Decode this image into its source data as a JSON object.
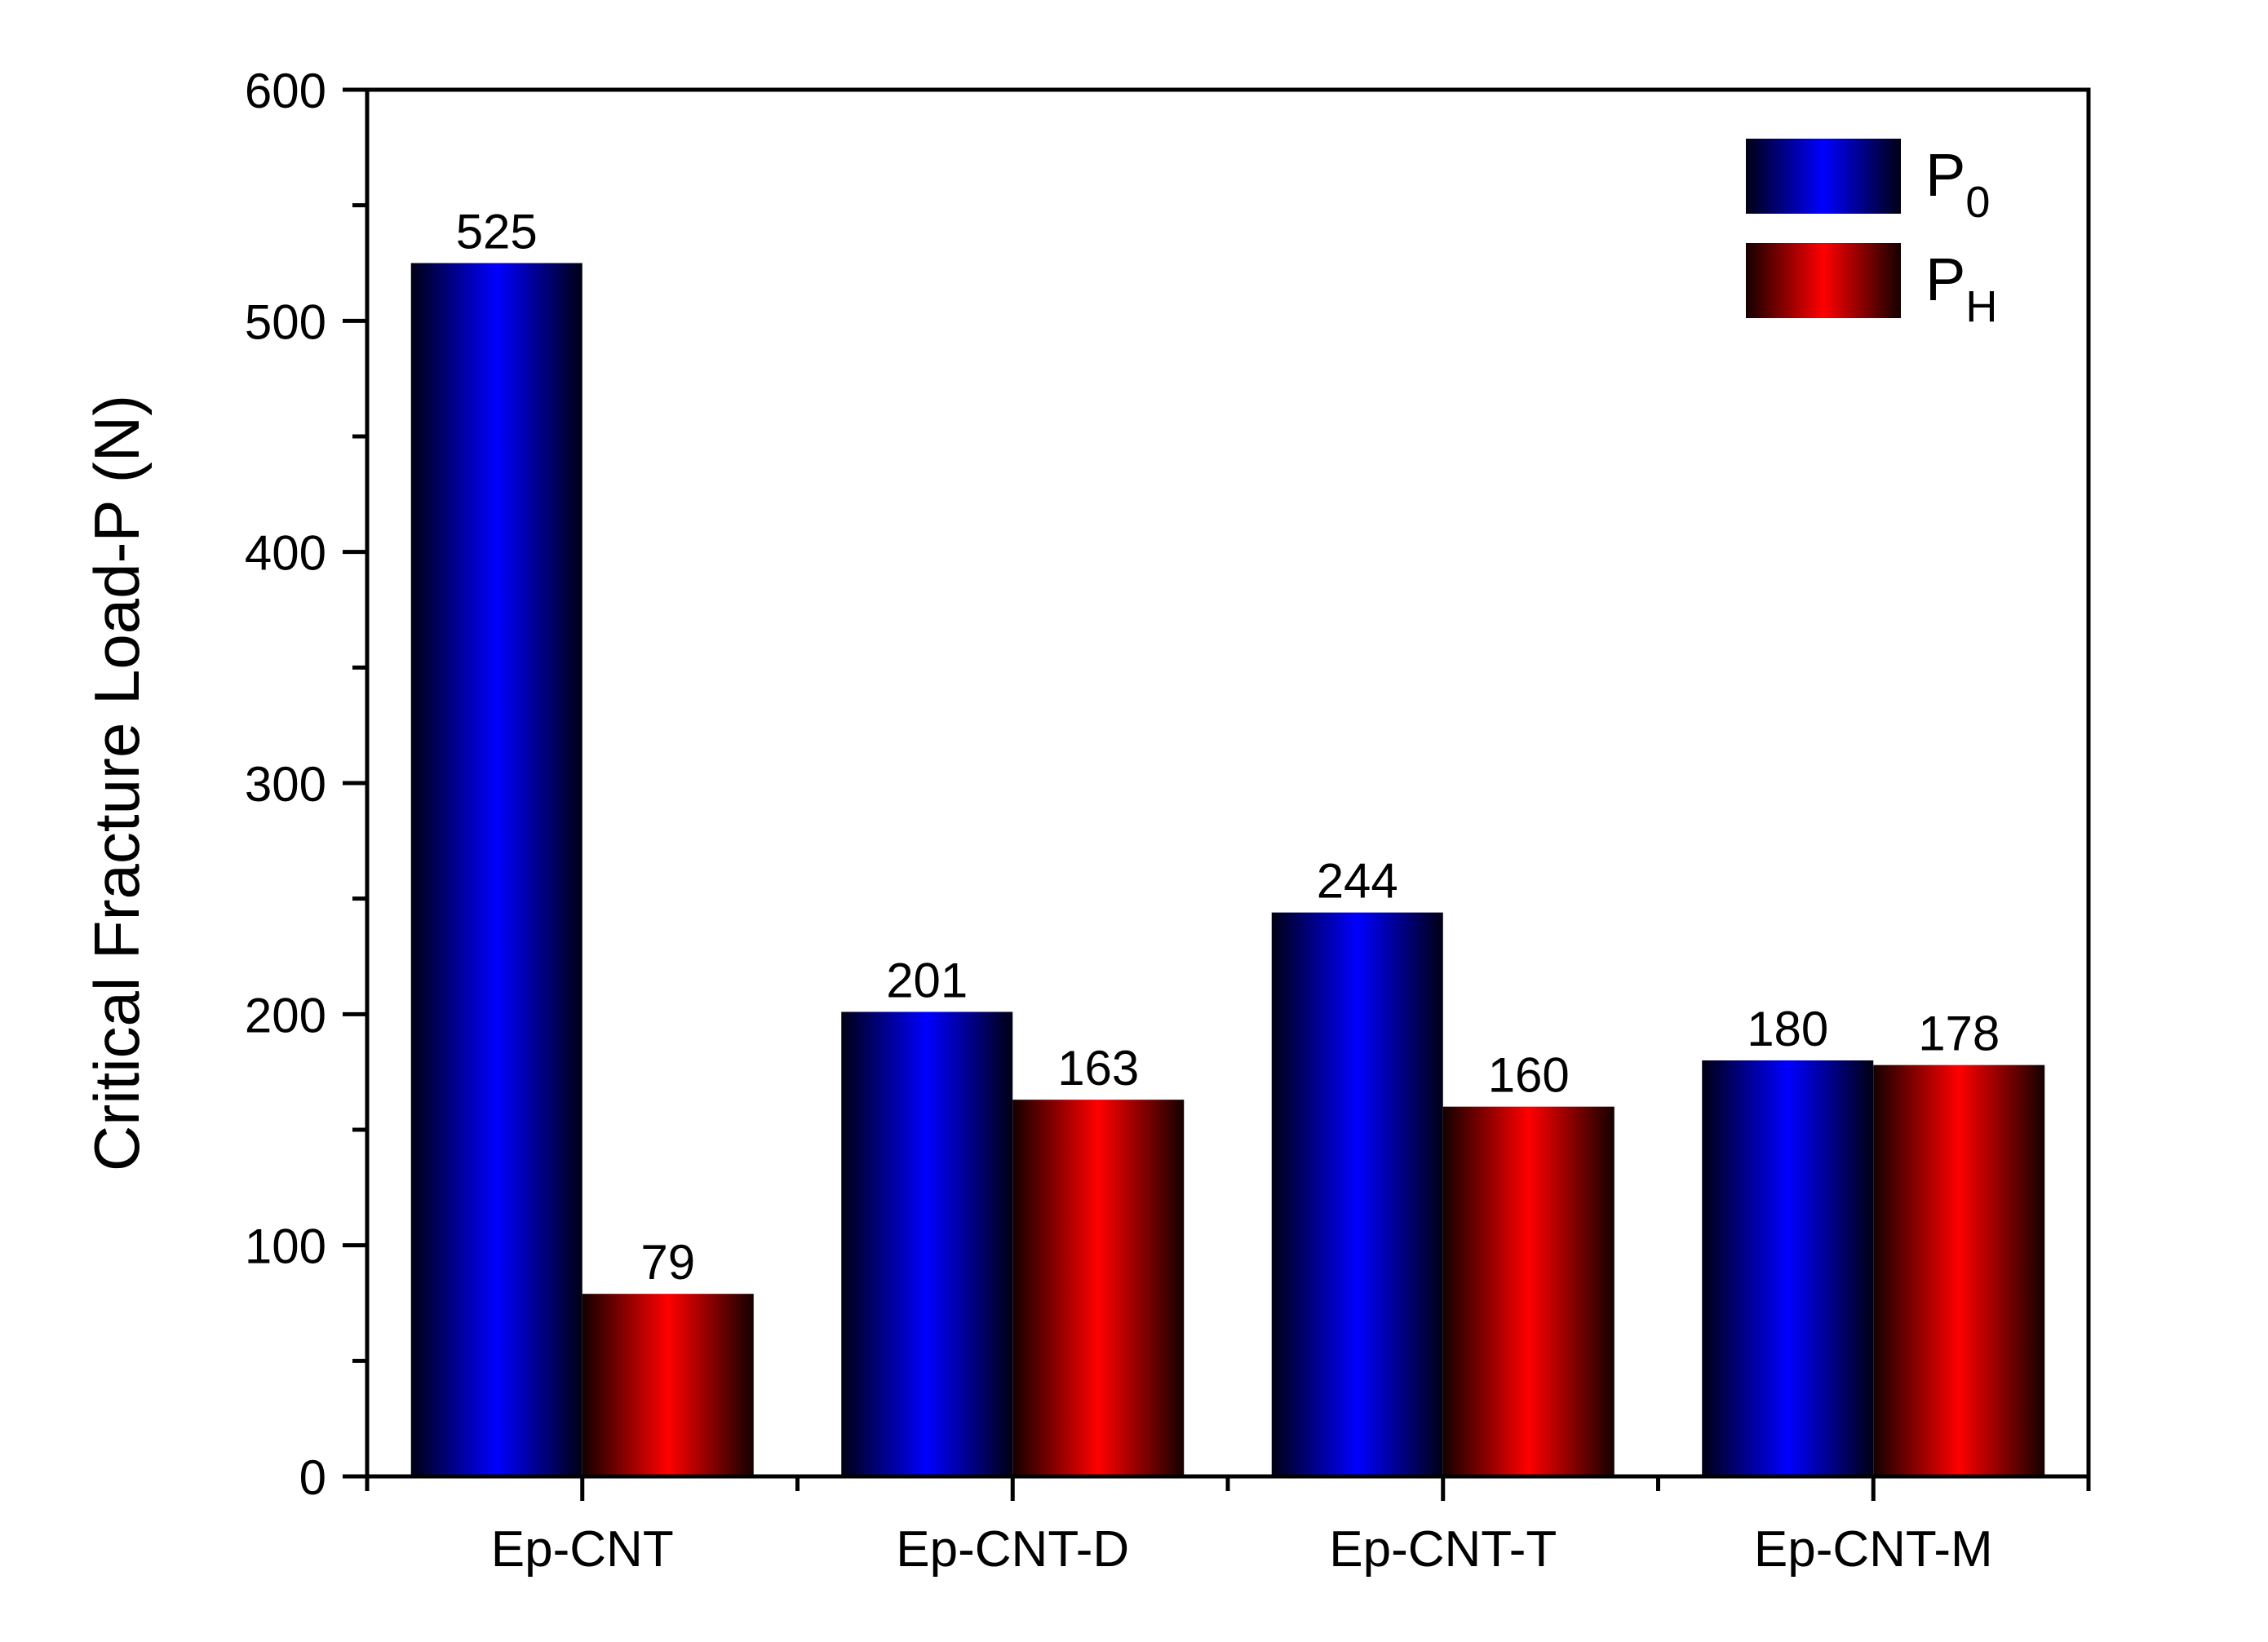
{
  "chart_data": {
    "type": "bar",
    "title": "",
    "xlabel": "",
    "ylabel": "Critical Fracture Load-P (N)",
    "ylim": [
      0,
      600
    ],
    "yticks": [
      "0",
      "100",
      "200",
      "300",
      "400",
      "500",
      "600"
    ],
    "categories": [
      "Ep-CNT",
      "Ep-CNT-D",
      "Ep-CNT-T",
      "Ep-CNT-M"
    ],
    "series": [
      {
        "name": "P",
        "subscript": "0",
        "values": [
          525,
          201,
          244,
          180
        ],
        "labels": [
          "525",
          "201",
          "244",
          "180"
        ],
        "color": "#0000ff"
      },
      {
        "name": "P",
        "subscript": "H",
        "values": [
          79,
          163,
          160,
          178
        ],
        "labels": [
          "79",
          "163",
          "160",
          "178"
        ],
        "color": "#ff0000"
      }
    ],
    "legend_position": "top-right",
    "grid": false
  }
}
